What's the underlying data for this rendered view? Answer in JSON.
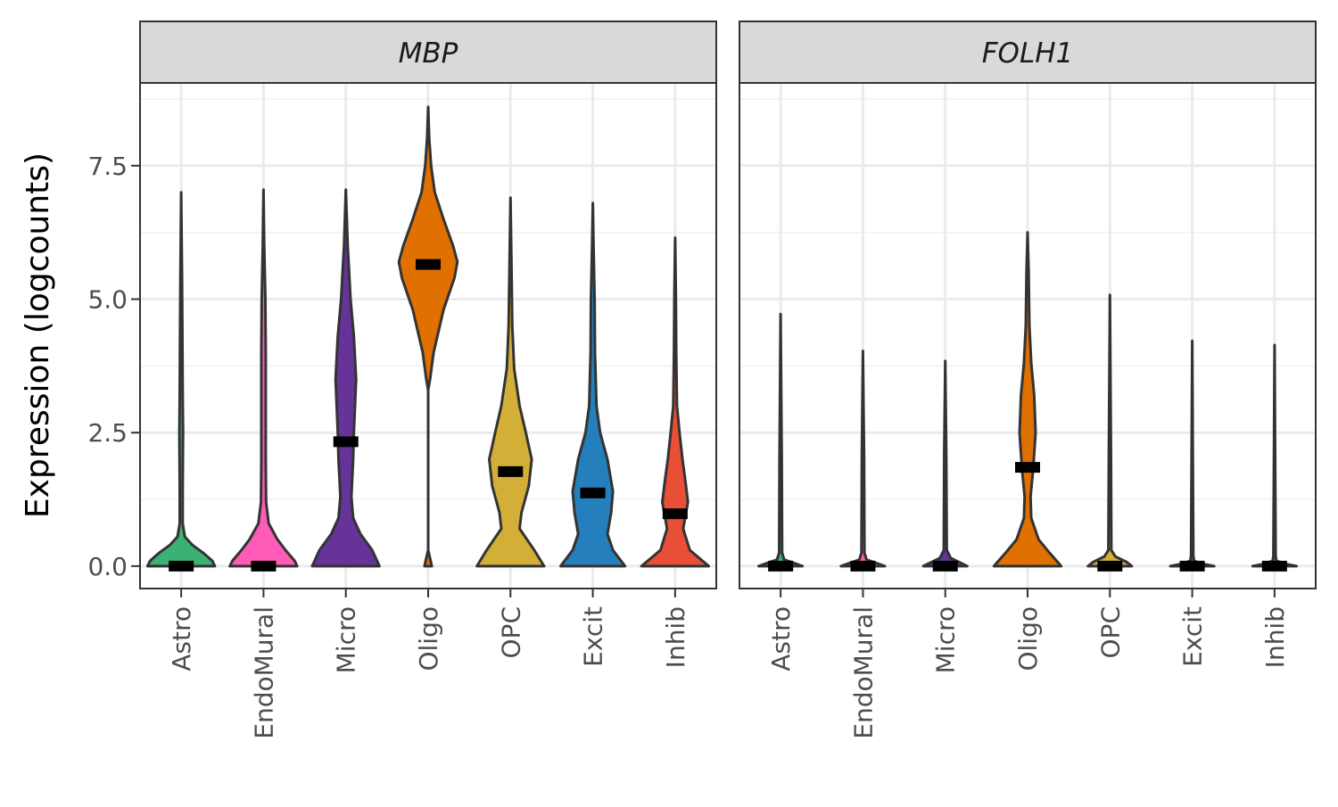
{
  "chart_data": {
    "type": "violin",
    "ylabel": "Expression (logcounts)",
    "ylim": [
      -0.42,
      9.05
    ],
    "yticks": [
      0.0,
      2.5,
      5.0,
      7.5
    ],
    "ytick_labels": [
      "0.0",
      "2.5",
      "5.0",
      "7.5"
    ],
    "grid": true,
    "categories": [
      "Astro",
      "EndoMural",
      "Micro",
      "Oligo",
      "OPC",
      "Excit",
      "Inhib"
    ],
    "colors": {
      "Astro": "#3BB273",
      "EndoMural": "#FF5CB8",
      "Micro": "#663399",
      "Oligo": "#E07000",
      "OPC": "#D4AF37",
      "Excit": "#247FBC",
      "Inhib": "#E94F37"
    },
    "panels": [
      {
        "gene": "MBP",
        "violins": [
          {
            "category": "Astro",
            "median": 0.0,
            "max": 7.0,
            "profile": [
              [
                0,
                0.92
              ],
              [
                0.1,
                0.85
              ],
              [
                0.25,
                0.6
              ],
              [
                0.4,
                0.3
              ],
              [
                0.55,
                0.1
              ],
              [
                0.8,
                0.04
              ],
              [
                1.5,
                0.04
              ],
              [
                2.5,
                0.05
              ],
              [
                3.2,
                0.04
              ],
              [
                4.5,
                0.03
              ],
              [
                5.5,
                0.02
              ],
              [
                7.0,
                0.0
              ]
            ]
          },
          {
            "category": "EndoMural",
            "median": 0.0,
            "max": 7.05,
            "profile": [
              [
                0,
                0.92
              ],
              [
                0.1,
                0.85
              ],
              [
                0.3,
                0.6
              ],
              [
                0.5,
                0.38
              ],
              [
                0.8,
                0.14
              ],
              [
                1.2,
                0.07
              ],
              [
                2.0,
                0.06
              ],
              [
                3.0,
                0.06
              ],
              [
                4.0,
                0.06
              ],
              [
                5.0,
                0.05
              ],
              [
                6.0,
                0.02
              ],
              [
                7.05,
                0.0
              ]
            ]
          },
          {
            "category": "Micro",
            "median": 2.33,
            "max": 7.05,
            "profile": [
              [
                0,
                0.92
              ],
              [
                0.3,
                0.72
              ],
              [
                0.6,
                0.4
              ],
              [
                0.9,
                0.2
              ],
              [
                1.3,
                0.15
              ],
              [
                2.0,
                0.2
              ],
              [
                2.5,
                0.22
              ],
              [
                3.5,
                0.28
              ],
              [
                4.3,
                0.22
              ],
              [
                5.0,
                0.13
              ],
              [
                6.0,
                0.05
              ],
              [
                7.05,
                0.0
              ]
            ]
          },
          {
            "category": "Oligo",
            "median": 5.65,
            "max": 8.6,
            "profile": [
              [
                0.0,
                0.1
              ],
              [
                0.15,
                0.05
              ],
              [
                0.3,
                0.0
              ],
              [
                3.3,
                0.0
              ],
              [
                3.5,
                0.05
              ],
              [
                4.0,
                0.15
              ],
              [
                4.8,
                0.42
              ],
              [
                5.4,
                0.72
              ],
              [
                5.7,
                0.8
              ],
              [
                6.0,
                0.68
              ],
              [
                6.5,
                0.42
              ],
              [
                7.0,
                0.18
              ],
              [
                7.5,
                0.08
              ],
              [
                8.0,
                0.03
              ],
              [
                8.6,
                0.0
              ]
            ]
          },
          {
            "category": "OPC",
            "median": 1.77,
            "max": 6.9,
            "profile": [
              [
                0,
                0.92
              ],
              [
                0.3,
                0.65
              ],
              [
                0.7,
                0.25
              ],
              [
                1.0,
                0.3
              ],
              [
                1.5,
                0.5
              ],
              [
                2.0,
                0.58
              ],
              [
                2.5,
                0.42
              ],
              [
                3.0,
                0.25
              ],
              [
                3.7,
                0.1
              ],
              [
                4.5,
                0.05
              ],
              [
                5.5,
                0.03
              ],
              [
                6.9,
                0.0
              ]
            ]
          },
          {
            "category": "Excit",
            "median": 1.37,
            "max": 6.8,
            "profile": [
              [
                0,
                0.88
              ],
              [
                0.3,
                0.55
              ],
              [
                0.6,
                0.4
              ],
              [
                1.0,
                0.5
              ],
              [
                1.4,
                0.55
              ],
              [
                2.0,
                0.4
              ],
              [
                2.5,
                0.2
              ],
              [
                3.0,
                0.1
              ],
              [
                4.0,
                0.06
              ],
              [
                5.0,
                0.05
              ],
              [
                6.0,
                0.02
              ],
              [
                6.8,
                0.0
              ]
            ]
          },
          {
            "category": "Inhib",
            "median": 0.98,
            "max": 6.15,
            "profile": [
              [
                0,
                0.92
              ],
              [
                0.3,
                0.4
              ],
              [
                0.7,
                0.22
              ],
              [
                1.2,
                0.35
              ],
              [
                1.6,
                0.28
              ],
              [
                2.0,
                0.2
              ],
              [
                2.5,
                0.12
              ],
              [
                3.0,
                0.05
              ],
              [
                4.0,
                0.03
              ],
              [
                5.0,
                0.02
              ],
              [
                6.15,
                0.0
              ]
            ]
          }
        ]
      },
      {
        "gene": "FOLH1",
        "violins": [
          {
            "category": "Astro",
            "median": 0.0,
            "max": 4.72,
            "profile": [
              [
                0,
                0.6
              ],
              [
                0.05,
                0.4
              ],
              [
                0.12,
                0.1
              ],
              [
                0.25,
                0.04
              ],
              [
                2.0,
                0.03
              ],
              [
                4.72,
                0.0
              ]
            ]
          },
          {
            "category": "EndoMural",
            "median": 0.0,
            "max": 4.03,
            "profile": [
              [
                0,
                0.6
              ],
              [
                0.05,
                0.4
              ],
              [
                0.12,
                0.1
              ],
              [
                0.25,
                0.04
              ],
              [
                2.0,
                0.03
              ],
              [
                4.03,
                0.0
              ]
            ]
          },
          {
            "category": "Micro",
            "median": 0.0,
            "max": 3.84,
            "profile": [
              [
                0,
                0.6
              ],
              [
                0.05,
                0.45
              ],
              [
                0.15,
                0.15
              ],
              [
                0.3,
                0.04
              ],
              [
                2.0,
                0.03
              ],
              [
                3.84,
                0.0
              ]
            ]
          },
          {
            "category": "Oligo",
            "median": 1.85,
            "max": 6.25,
            "profile": [
              [
                0,
                0.92
              ],
              [
                0.25,
                0.6
              ],
              [
                0.5,
                0.3
              ],
              [
                0.9,
                0.1
              ],
              [
                1.3,
                0.08
              ],
              [
                1.8,
                0.15
              ],
              [
                2.5,
                0.22
              ],
              [
                3.2,
                0.18
              ],
              [
                3.8,
                0.1
              ],
              [
                4.5,
                0.05
              ],
              [
                5.5,
                0.03
              ],
              [
                6.25,
                0.0
              ]
            ]
          },
          {
            "category": "OPC",
            "median": 0.0,
            "max": 5.08,
            "profile": [
              [
                0,
                0.6
              ],
              [
                0.08,
                0.45
              ],
              [
                0.18,
                0.15
              ],
              [
                0.3,
                0.04
              ],
              [
                2.0,
                0.03
              ],
              [
                5.08,
                0.0
              ]
            ]
          },
          {
            "category": "Excit",
            "median": 0.0,
            "max": 4.22,
            "profile": [
              [
                0,
                0.6
              ],
              [
                0.04,
                0.3
              ],
              [
                0.1,
                0.05
              ],
              [
                0.2,
                0.03
              ],
              [
                4.22,
                0.0
              ]
            ]
          },
          {
            "category": "Inhib",
            "median": 0.0,
            "max": 4.14,
            "profile": [
              [
                0,
                0.6
              ],
              [
                0.04,
                0.3
              ],
              [
                0.1,
                0.05
              ],
              [
                0.2,
                0.03
              ],
              [
                4.14,
                0.0
              ]
            ]
          }
        ]
      }
    ]
  }
}
